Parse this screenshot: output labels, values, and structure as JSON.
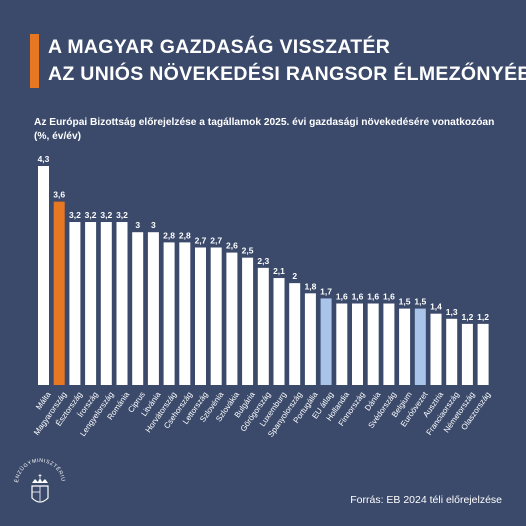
{
  "header": {
    "title_line1": "A MAGYAR GAZDASÁG VISSZATÉR",
    "title_line2": "AZ UNIÓS NÖVEKEDÉSI RANGSOR ÉLMEZŐNYÉBE"
  },
  "footer": {
    "source": "Forrás: EB 2024 téli előrejelzése",
    "logo_text": "PÉNZÜGYMINISZTÉRIUM"
  },
  "colors": {
    "background": "#3b4a6b",
    "default_bar": "#ffffff",
    "hungary_bar": "#e87722",
    "aggregate_bar": "#a9c4e8",
    "accent": "#e87722"
  },
  "chart_data": {
    "type": "bar",
    "title": "Az Európai Bizottság előrejelzése a tagállamok 2025. évi gazdasági növekedésére vonatkozóan (%, év/év)",
    "ylim": [
      0,
      4.3
    ],
    "grid": false,
    "categories": [
      "Málta",
      "Magyarország",
      "Észtország",
      "Írország",
      "Lengyelország",
      "Románia",
      "Ciprus",
      "Litvánia",
      "Horvátország",
      "Csehország",
      "Lettország",
      "Szlovénia",
      "Szlovákia",
      "Bulgária",
      "Görögország",
      "Luxemburg",
      "Spanyolország",
      "Portugália",
      "EU átlag",
      "Hollandia",
      "Finnország",
      "Dánia",
      "Svédország",
      "Belgium",
      "Euróövezet",
      "Ausztria",
      "Franciaország",
      "Németország",
      "Olaszország"
    ],
    "labels": [
      "4,3",
      "3,6",
      "3,2",
      "3,2",
      "3,2",
      "3,2",
      "3",
      "3",
      "2,8",
      "2,8",
      "2,7",
      "2,7",
      "2,6",
      "2,5",
      "2,3",
      "2,1",
      "2",
      "1,8",
      "1,7",
      "1,6",
      "1,6",
      "1,6",
      "1,6",
      "1,5",
      "1,5",
      "1,4",
      "1,3",
      "1,2",
      "1,2"
    ],
    "values": [
      4.3,
      3.6,
      3.2,
      3.2,
      3.2,
      3.2,
      3.0,
      3.0,
      2.8,
      2.8,
      2.7,
      2.7,
      2.6,
      2.5,
      2.3,
      2.1,
      2.0,
      1.8,
      1.7,
      1.6,
      1.6,
      1.6,
      1.6,
      1.5,
      1.5,
      1.4,
      1.3,
      1.2,
      1.2
    ],
    "highlight": {
      "Magyarország": "hungary",
      "EU átlag": "aggregate",
      "Euróövezet": "aggregate"
    }
  }
}
